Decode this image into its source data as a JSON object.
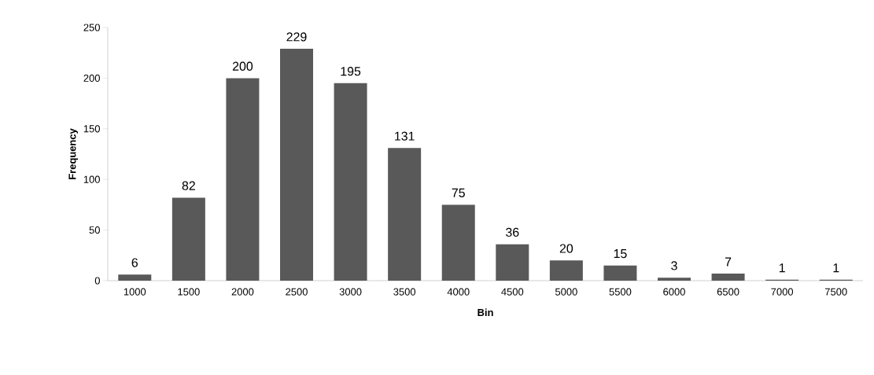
{
  "chart_data": {
    "type": "bar",
    "categories": [
      "1000",
      "1500",
      "2000",
      "2500",
      "3000",
      "3500",
      "4000",
      "4500",
      "5000",
      "5500",
      "6000",
      "6500",
      "7000",
      "7500"
    ],
    "values": [
      6,
      82,
      200,
      229,
      195,
      131,
      75,
      36,
      20,
      15,
      3,
      7,
      1,
      1
    ],
    "color": "#595959",
    "xlabel": "Bin",
    "ylabel": "Frequency",
    "ylim": [
      0,
      250
    ],
    "yticks": [
      0,
      50,
      100,
      150,
      200,
      250
    ],
    "data_labels": true
  }
}
